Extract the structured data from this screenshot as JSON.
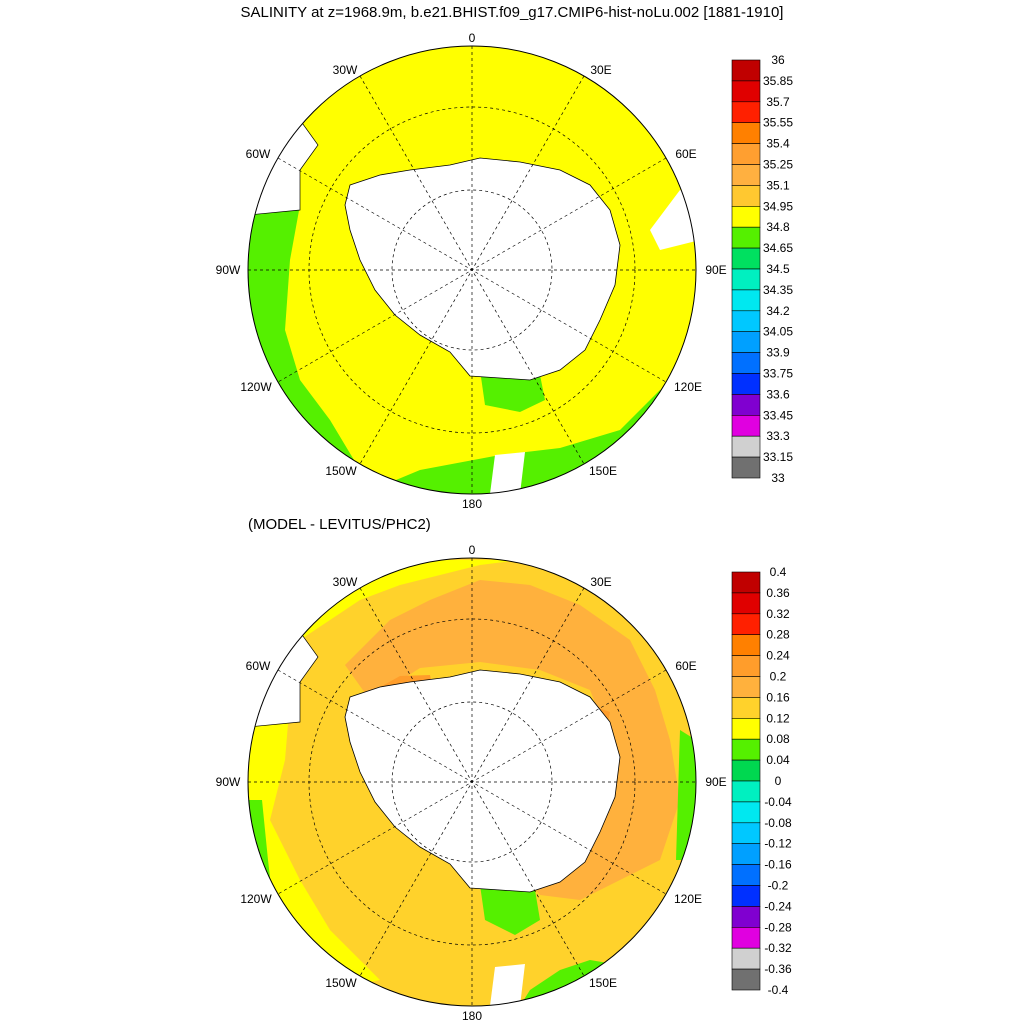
{
  "title": "SALINITY at z=1968.9m, b.e21.BHIST.f09_g17.CMIP6-hist-noLu.002 [1881-1910]",
  "subtitle": "(MODEL - LEVITUS/PHC2)",
  "lon_labels": {
    "top": "0",
    "left_upper": "30W",
    "right_upper": "30E",
    "left_mid_upper": "60W",
    "right_mid_upper": "60E",
    "left": "90W",
    "right": "90E",
    "left_lower": "120W",
    "right_lower": "120E",
    "bottom_left": "150W",
    "bottom_right": "150E",
    "bottom": "180"
  },
  "colors": {
    "fill_yellow": "#ffff00",
    "fill_green": "#55f000",
    "fill_orange_light": "#ffb13d",
    "fill_orange": "#ff9d2b",
    "fill_gold": "#ffd22b",
    "land": "#ffffff"
  },
  "chart_data": [
    {
      "type": "heatmap",
      "title": "SALINITY at z=1968.9m, b.e21.BHIST.f09_g17.CMIP6-hist-noLu.002 [1881-1910]",
      "projection": "south polar stereographic",
      "colorbar": {
        "levels": [
          "36",
          "35.85",
          "35.7",
          "35.55",
          "35.4",
          "35.25",
          "35.1",
          "34.95",
          "34.8",
          "34.65",
          "34.5",
          "34.35",
          "34.2",
          "34.05",
          "33.9",
          "33.75",
          "33.6",
          "33.45",
          "33.3",
          "33.15",
          "33"
        ],
        "colors": [
          "#c00000",
          "#e00000",
          "#ff2000",
          "#ff8000",
          "#ff9f30",
          "#ffb040",
          "#ffc830",
          "#ffff00",
          "#55f000",
          "#00e060",
          "#00f0c0",
          "#00e8f0",
          "#00c8ff",
          "#00a0ff",
          "#0070ff",
          "#0030ff",
          "#8000d0",
          "#e000e0",
          "#d0d0d0",
          "#707070"
        ]
      },
      "dominant_value_range": "34.8-34.95",
      "secondary_value_range": "34.65-34.8"
    },
    {
      "type": "heatmap",
      "title": "(MODEL - LEVITUS/PHC2)",
      "projection": "south polar stereographic",
      "colorbar": {
        "levels": [
          "0.4",
          "0.36",
          "0.32",
          "0.28",
          "0.24",
          "0.2",
          "0.16",
          "0.12",
          "0.08",
          "0.04",
          "0",
          "-0.04",
          "-0.08",
          "-0.12",
          "-0.16",
          "-0.2",
          "-0.24",
          "-0.28",
          "-0.32",
          "-0.36",
          "-0.4"
        ],
        "colors": [
          "#c00000",
          "#e00000",
          "#ff2000",
          "#ff8000",
          "#ff9d2b",
          "#ffb13d",
          "#ffd22b",
          "#ffff00",
          "#55f000",
          "#00d850",
          "#00f0c0",
          "#00e8f0",
          "#00c8ff",
          "#00a0ff",
          "#0070ff",
          "#0030ff",
          "#8000d0",
          "#e000e0",
          "#d0d0d0",
          "#707070"
        ]
      },
      "dominant_value_range": "0.12-0.2"
    }
  ]
}
